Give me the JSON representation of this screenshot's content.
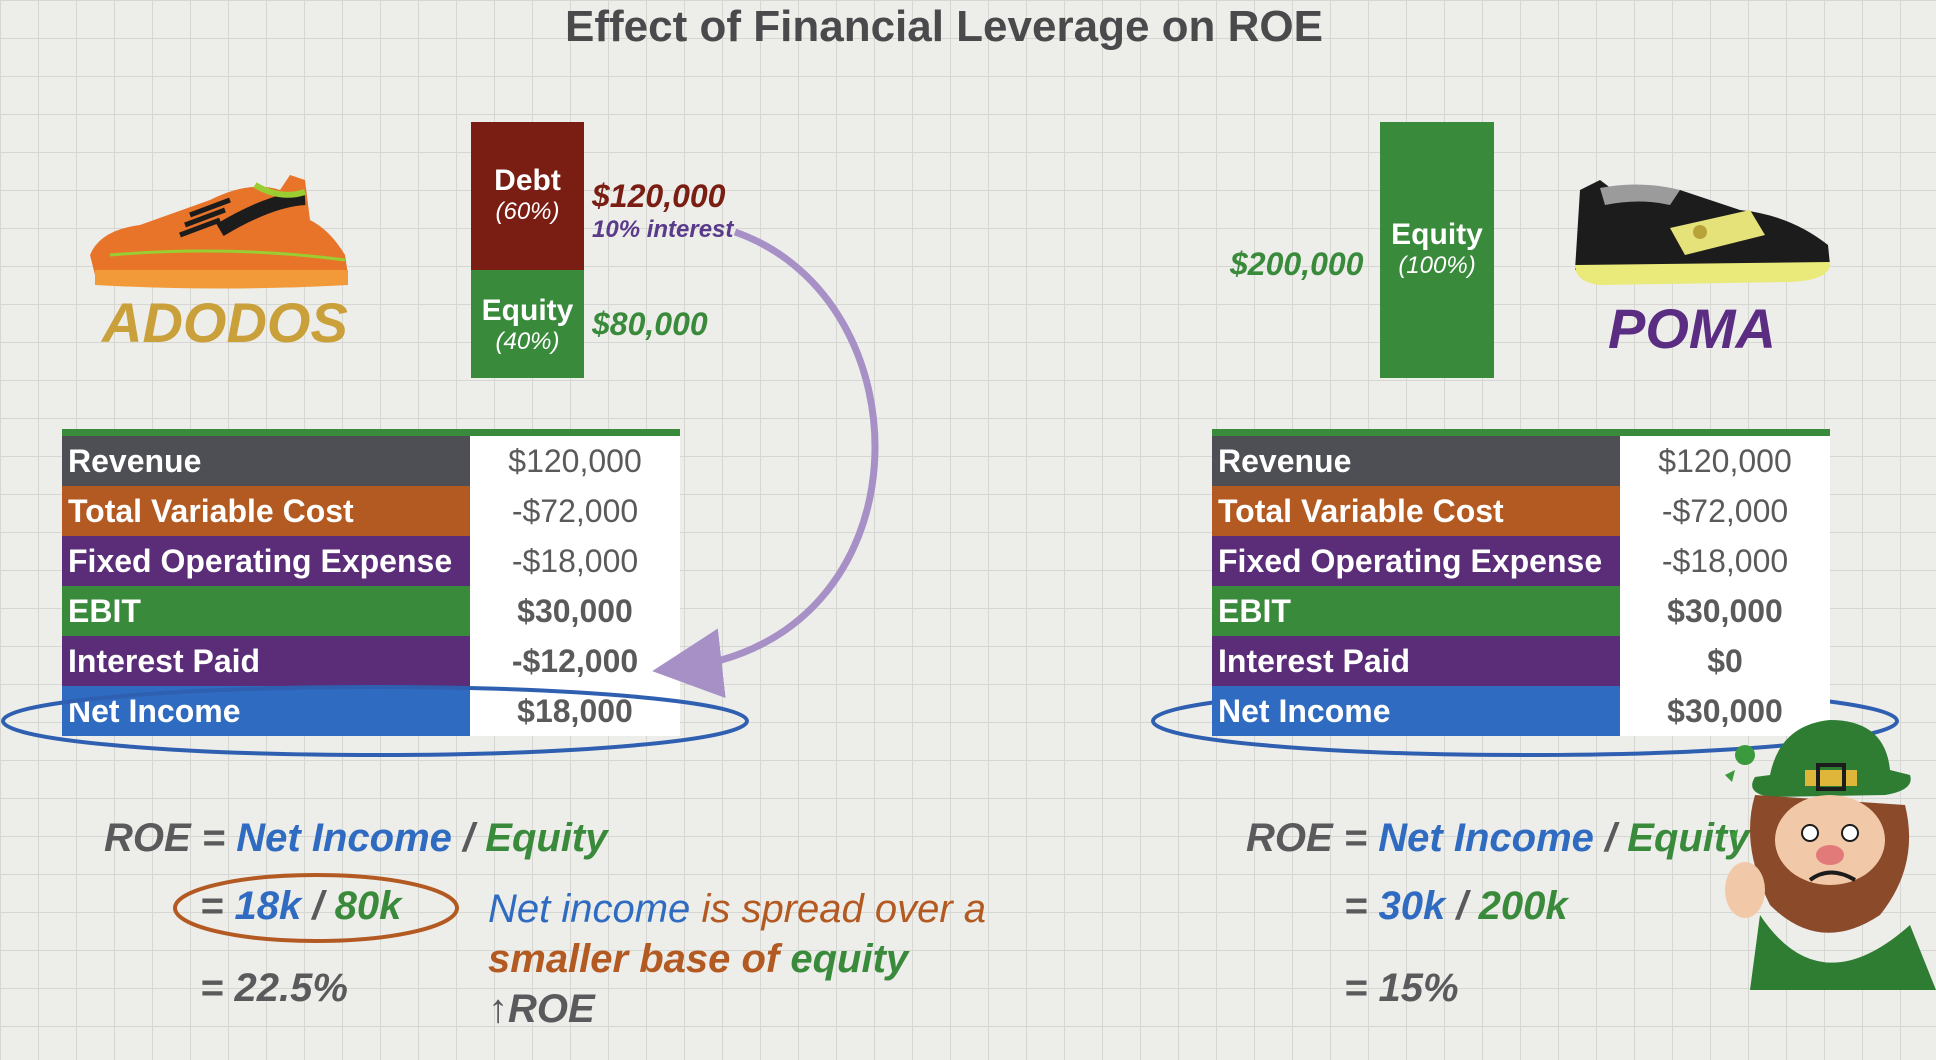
{
  "title": "Effect of Financial Leverage on ROE",
  "colors": {
    "debt": "#7a1d12",
    "equity": "#3a8a3c",
    "revenue": "#4e4f55",
    "variable_cost": "#b35a22",
    "purple": "#5b2d78",
    "net_income": "#2f6bc0",
    "adodos_brand": "#c9a03a",
    "poma_brand": "#5a2d82"
  },
  "adodos": {
    "brand": "ADODOS",
    "debt_label": "Debt",
    "debt_pct": "(60%)",
    "debt_amount": "$120,000",
    "debt_note": "10% interest",
    "equity_label": "Equity",
    "equity_pct": "(40%)",
    "equity_amount": "$80,000",
    "table": {
      "revenue": {
        "label": "Revenue",
        "value": "$120,000"
      },
      "variable_cost": {
        "label": "Total Variable Cost",
        "value": "-$72,000"
      },
      "fixed_expense": {
        "label": "Fixed Operating Expense",
        "value": "-$18,000"
      },
      "ebit": {
        "label": "EBIT",
        "value": "$30,000"
      },
      "interest": {
        "label": "Interest Paid",
        "value": "-$12,000"
      },
      "net_income": {
        "label": "Net Income",
        "value": "$18,000"
      }
    },
    "formula": {
      "roe": "ROE =",
      "ni": "Net Income",
      "slash": "/",
      "eq": "Equity",
      "line2_prefix": "=",
      "line2_ni": "18k",
      "line2_slash": "/",
      "line2_eq": "80k",
      "line3": "= 22.5%"
    },
    "explanation": {
      "part1": "Net income",
      "part2": "is spread over a",
      "part3": "smaller base of",
      "part4": "equity",
      "part5": "↑ROE"
    }
  },
  "poma": {
    "brand": "POMA",
    "equity_label": "Equity",
    "equity_pct": "(100%)",
    "equity_amount": "$200,000",
    "table": {
      "revenue": {
        "label": "Revenue",
        "value": "$120,000"
      },
      "variable_cost": {
        "label": "Total Variable Cost",
        "value": "-$72,000"
      },
      "fixed_expense": {
        "label": "Fixed Operating Expense",
        "value": "-$18,000"
      },
      "ebit": {
        "label": "EBIT",
        "value": "$30,000"
      },
      "interest": {
        "label": "Interest Paid",
        "value": "$0"
      },
      "net_income": {
        "label": "Net Income",
        "value": "$30,000"
      }
    },
    "formula": {
      "roe": "ROE =",
      "ni": "Net Income",
      "slash": "/",
      "eq": "Equity",
      "line2_prefix": "=",
      "line2_ni": "30k",
      "line2_slash": "/",
      "line2_eq": "200k",
      "line3": "= 15%"
    }
  },
  "icons": [
    "orange-sneaker-icon",
    "black-sneaker-icon",
    "leprechaun-icon",
    "curved-arrow-icon"
  ]
}
